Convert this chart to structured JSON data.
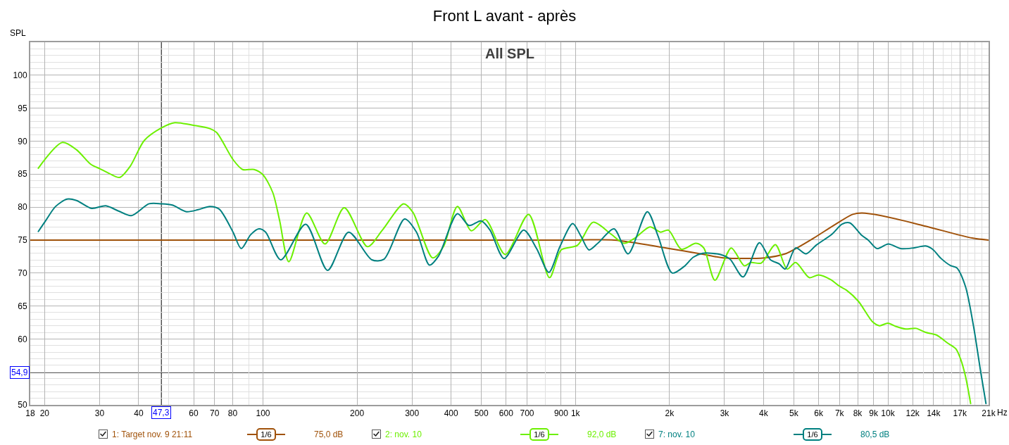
{
  "chart_data": {
    "type": "line",
    "title": "Front L avant - après",
    "subtitle": "All SPL",
    "ylabel": "SPL",
    "xlabel": "Hz",
    "log": "x",
    "grid": true,
    "legend": "bottom",
    "xlim": [
      18,
      21000
    ],
    "ylim": [
      50,
      105
    ],
    "xticks": [
      18,
      20,
      30,
      40,
      {
        "value": 50,
        "label": null
      },
      60,
      70,
      80,
      {
        "value": 90,
        "label": null
      },
      100,
      200,
      300,
      400,
      500,
      600,
      700,
      {
        "value": 800,
        "label": null
      },
      900,
      {
        "value": 1000,
        "label": "1k"
      },
      {
        "value": 2000,
        "label": "2k"
      },
      {
        "value": 3000,
        "label": "3k"
      },
      {
        "value": 4000,
        "label": "4k"
      },
      {
        "value": 5000,
        "label": "5k"
      },
      {
        "value": 6000,
        "label": "6k"
      },
      {
        "value": 7000,
        "label": "7k"
      },
      {
        "value": 8000,
        "label": "8k"
      },
      {
        "value": 9000,
        "label": "9k"
      },
      {
        "value": 10000,
        "label": "10k"
      },
      {
        "value": 11000,
        "label": null
      },
      {
        "value": 12000,
        "label": "12k"
      },
      {
        "value": 13000,
        "label": null
      },
      {
        "value": 14000,
        "label": "14k"
      },
      {
        "value": 15000,
        "label": null
      },
      {
        "value": 16000,
        "label": null
      },
      {
        "value": 17000,
        "label": "17k"
      },
      {
        "value": 18000,
        "label": null
      },
      {
        "value": 19000,
        "label": null
      },
      {
        "value": 20000,
        "label": null
      },
      {
        "value": 21000,
        "label": "21k"
      }
    ],
    "yticks": [
      50,
      {
        "value": 51,
        "label": null
      },
      {
        "value": 52,
        "label": null
      },
      {
        "value": 53,
        "label": null
      },
      {
        "value": 54,
        "label": null
      },
      {
        "value": 55,
        "label": null
      },
      {
        "value": 56,
        "label": null
      },
      {
        "value": 57,
        "label": null
      },
      {
        "value": 58,
        "label": null
      },
      {
        "value": 59,
        "label": null
      },
      60,
      {
        "value": 61,
        "label": null
      },
      {
        "value": 62,
        "label": null
      },
      {
        "value": 63,
        "label": null
      },
      {
        "value": 64,
        "label": null
      },
      65,
      {
        "value": 66,
        "label": null
      },
      {
        "value": 67,
        "label": null
      },
      {
        "value": 68,
        "label": null
      },
      {
        "value": 69,
        "label": null
      },
      70,
      {
        "value": 71,
        "label": null
      },
      {
        "value": 72,
        "label": null
      },
      {
        "value": 73,
        "label": null
      },
      {
        "value": 74,
        "label": null
      },
      75,
      {
        "value": 76,
        "label": null
      },
      {
        "value": 77,
        "label": null
      },
      {
        "value": 78,
        "label": null
      },
      {
        "value": 79,
        "label": null
      },
      80,
      {
        "value": 81,
        "label": null
      },
      {
        "value": 82,
        "label": null
      },
      {
        "value": 83,
        "label": null
      },
      {
        "value": 84,
        "label": null
      },
      85,
      {
        "value": 86,
        "label": null
      },
      {
        "value": 87,
        "label": null
      },
      {
        "value": 88,
        "label": null
      },
      {
        "value": 89,
        "label": null
      },
      90,
      {
        "value": 91,
        "label": null
      },
      {
        "value": 92,
        "label": null
      },
      {
        "value": 93,
        "label": null
      },
      {
        "value": 94,
        "label": null
      },
      95,
      {
        "value": 96,
        "label": null
      },
      {
        "value": 97,
        "label": null
      },
      {
        "value": 98,
        "label": null
      },
      {
        "value": 99,
        "label": null
      },
      100,
      {
        "value": 101,
        "label": null
      },
      {
        "value": 102,
        "label": null
      },
      {
        "value": 103,
        "label": null
      },
      {
        "value": 104,
        "label": null
      },
      {
        "value": 105,
        "label": null
      }
    ],
    "ref_lines": [
      {
        "axis": "x",
        "value": 47.3,
        "label": "47,3",
        "color": "#000000"
      },
      {
        "axis": "y",
        "value": 54.9,
        "label": "54,9",
        "color": "#000000"
      }
    ],
    "annotations": [
      "1/6",
      "75,0 dB",
      "1/6",
      "92,0 dB",
      "1/6",
      "80,5 dB"
    ],
    "series": [
      {
        "name": "1: Target nov. 9 21:11",
        "color": "#a0520a",
        "x": [
          18,
          100,
          1000,
          1330,
          1950,
          2590,
          2970,
          4030,
          4690,
          5070,
          5790,
          6750,
          7720,
          8250,
          9520,
          13200,
          18600,
          21000
        ],
        "values": [
          75,
          75,
          75,
          75,
          73.8,
          72.8,
          72.3,
          72.3,
          72.9,
          73.7,
          75.3,
          77.3,
          78.9,
          79.1,
          78.7,
          77.1,
          75.3,
          75
        ]
      },
      {
        "name": "2: nov. 10",
        "color": "#6cf000",
        "x": [
          19.1,
          22.8,
          25.3,
          28.1,
          30.1,
          32.2,
          34.8,
          37.6,
          41.7,
          47.3,
          52.2,
          59.9,
          67.6,
          71.1,
          80.2,
          86.0,
          93.7,
          100,
          107.5,
          113,
          121,
          138,
          158,
          182,
          216,
          241,
          282,
          302,
          349,
          378,
          419,
          464,
          515,
          596,
          708,
          826,
          900,
          1015,
          1140,
          1300,
          1432,
          1550,
          1732,
          1872,
          1985,
          2183,
          2429,
          2574,
          2795,
          3151,
          3471,
          3643,
          3933,
          4366,
          4757,
          5066,
          5600,
          6000,
          6560,
          7000,
          7370,
          8050,
          8930,
          9400,
          10000,
          10600,
          11400,
          12300,
          13200,
          14300,
          15500,
          16500,
          17100,
          17700,
          18400
        ],
        "values": [
          85.9,
          89.8,
          88.7,
          86.5,
          85.8,
          85.1,
          84.5,
          86.2,
          90.1,
          92.0,
          92.8,
          92.4,
          91.9,
          91.3,
          87.2,
          85.7,
          85.7,
          84.9,
          82.2,
          78.0,
          71.7,
          79.1,
          74.4,
          79.9,
          74.0,
          76.5,
          80.5,
          79.2,
          72.3,
          74.0,
          80.1,
          76.4,
          78.1,
          72.8,
          78.9,
          69.3,
          73.5,
          74.2,
          77.7,
          75.9,
          74.5,
          75.3,
          77.0,
          76.2,
          76.5,
          73.6,
          74.5,
          73.8,
          68.9,
          73.8,
          71.1,
          71.6,
          71.5,
          74.3,
          70.6,
          71.6,
          69.3,
          69.7,
          69.0,
          68.0,
          67.4,
          65.7,
          62.6,
          62.0,
          62.4,
          61.9,
          61.5,
          61.6,
          61.0,
          60.6,
          59.4,
          58.5,
          56.9,
          54.4,
          50.2
        ]
      },
      {
        "name": "7: nov. 10",
        "color": "#008080",
        "x": [
          19.1,
          20.2,
          21.7,
          23.6,
          25.3,
          28.3,
          31.4,
          34.5,
          37.9,
          43.2,
          47.3,
          51.3,
          56.9,
          62.0,
          67.6,
          72.4,
          80.2,
          85.2,
          91.3,
          97.0,
          102,
          114,
          137,
          161,
          188,
          223,
          244,
          284,
          310,
          341,
          365,
          419,
          457,
          499,
          533,
          591,
          683,
          751,
          822,
          892,
          980,
          1041,
          1105,
          1184,
          1329,
          1474,
          1699,
          1835,
          2041,
          2229,
          2384,
          2551,
          2912,
          3123,
          3439,
          3880,
          4209,
          4484,
          4694,
          5066,
          5469,
          5889,
          6626,
          7130,
          7550,
          8250,
          8650,
          9230,
          10030,
          11000,
          12060,
          13200,
          13900,
          14800,
          15900,
          16600,
          17700,
          18800,
          19800,
          20600
        ],
        "values": [
          76.3,
          78.0,
          80.1,
          81.2,
          81.0,
          79.8,
          80.2,
          79.4,
          78.7,
          80.5,
          80.5,
          80.3,
          79.3,
          79.6,
          80.1,
          79.7,
          76.2,
          73.7,
          75.8,
          76.7,
          76.2,
          72.0,
          77.4,
          70.4,
          76.2,
          72.0,
          72.1,
          78.2,
          76.2,
          71.2,
          72.6,
          79.0,
          77.2,
          77.9,
          76.5,
          72.2,
          76.5,
          73.7,
          70.1,
          74.0,
          77.5,
          75.6,
          73.5,
          74.6,
          76.7,
          72.9,
          79.3,
          75.7,
          70.0,
          71.0,
          72.4,
          73.0,
          72.8,
          72.1,
          69.4,
          74.6,
          72.0,
          71.4,
          70.6,
          73.8,
          72.9,
          74.2,
          75.9,
          77.4,
          77.6,
          75.7,
          75.0,
          73.7,
          74.4,
          73.7,
          73.8,
          74.1,
          73.6,
          72.2,
          71.1,
          70.8,
          68.0,
          61.9,
          55.1,
          50.2
        ]
      }
    ]
  }
}
